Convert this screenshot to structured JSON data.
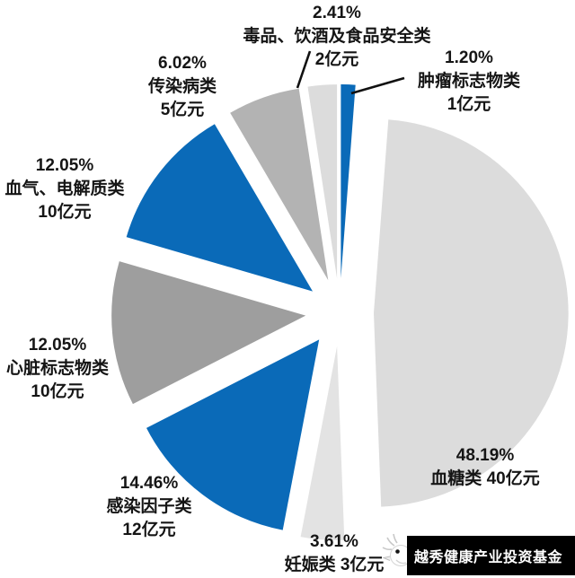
{
  "chart_data": {
    "type": "pie",
    "title": "",
    "unit": "亿元",
    "direction": "clockwise",
    "start_angle_deg": 0,
    "legend_position": "none",
    "slices": [
      {
        "name": "肿瘤标志物类",
        "percent": 1.2,
        "value": 1,
        "color": "#0a6ab8",
        "label_lines": [
          "1.20%",
          "肿瘤标志物类",
          "1亿元"
        ]
      },
      {
        "name": "血糖类",
        "percent": 48.19,
        "value": 40,
        "color": "#dcdcdc",
        "label_lines": [
          "48.19%",
          "血糖类  40亿元"
        ]
      },
      {
        "name": "妊娠类",
        "percent": 3.61,
        "value": 3,
        "color": "#e3e3e3",
        "label_lines": [
          "3.61%",
          "妊娠类  3亿元"
        ]
      },
      {
        "name": "感染因子类",
        "percent": 14.46,
        "value": 12,
        "color": "#0a6ab8",
        "label_lines": [
          "14.46%",
          "感染因子类",
          "12亿元"
        ]
      },
      {
        "name": "心脏标志物类",
        "percent": 12.05,
        "value": 10,
        "color": "#9e9e9e",
        "label_lines": [
          "12.05%",
          "心脏标志物类",
          "10亿元"
        ]
      },
      {
        "name": "血气、电解质类",
        "percent": 12.05,
        "value": 10,
        "color": "#0a6ab8",
        "label_lines": [
          "12.05%",
          "血气、电解质类",
          "10亿元"
        ]
      },
      {
        "name": "传染病类",
        "percent": 6.02,
        "value": 5,
        "color": "#b3b3b3",
        "label_lines": [
          "6.02%",
          "传染病类",
          "5亿元"
        ]
      },
      {
        "name": "毒品、饮酒及食品安全类",
        "percent": 2.41,
        "value": 2,
        "color": "#dcdcdc",
        "label_lines": [
          "2.41%",
          "毒品、饮酒及食品安全类",
          "2亿元"
        ]
      }
    ]
  },
  "colors": {
    "blue": "#0a6ab8",
    "light_gray": "#dcdcdc",
    "lighter_gray": "#e3e3e3",
    "mid_gray": "#b3b3b3",
    "dark_gray": "#9e9e9e",
    "label_text": "#151515",
    "leader_line": "#111111",
    "footer_bg": "#000000",
    "footer_text": "#ffffff"
  },
  "footer": {
    "brand": "越秀健康产业投资基金",
    "logo_icon": "bird-logo-icon"
  }
}
